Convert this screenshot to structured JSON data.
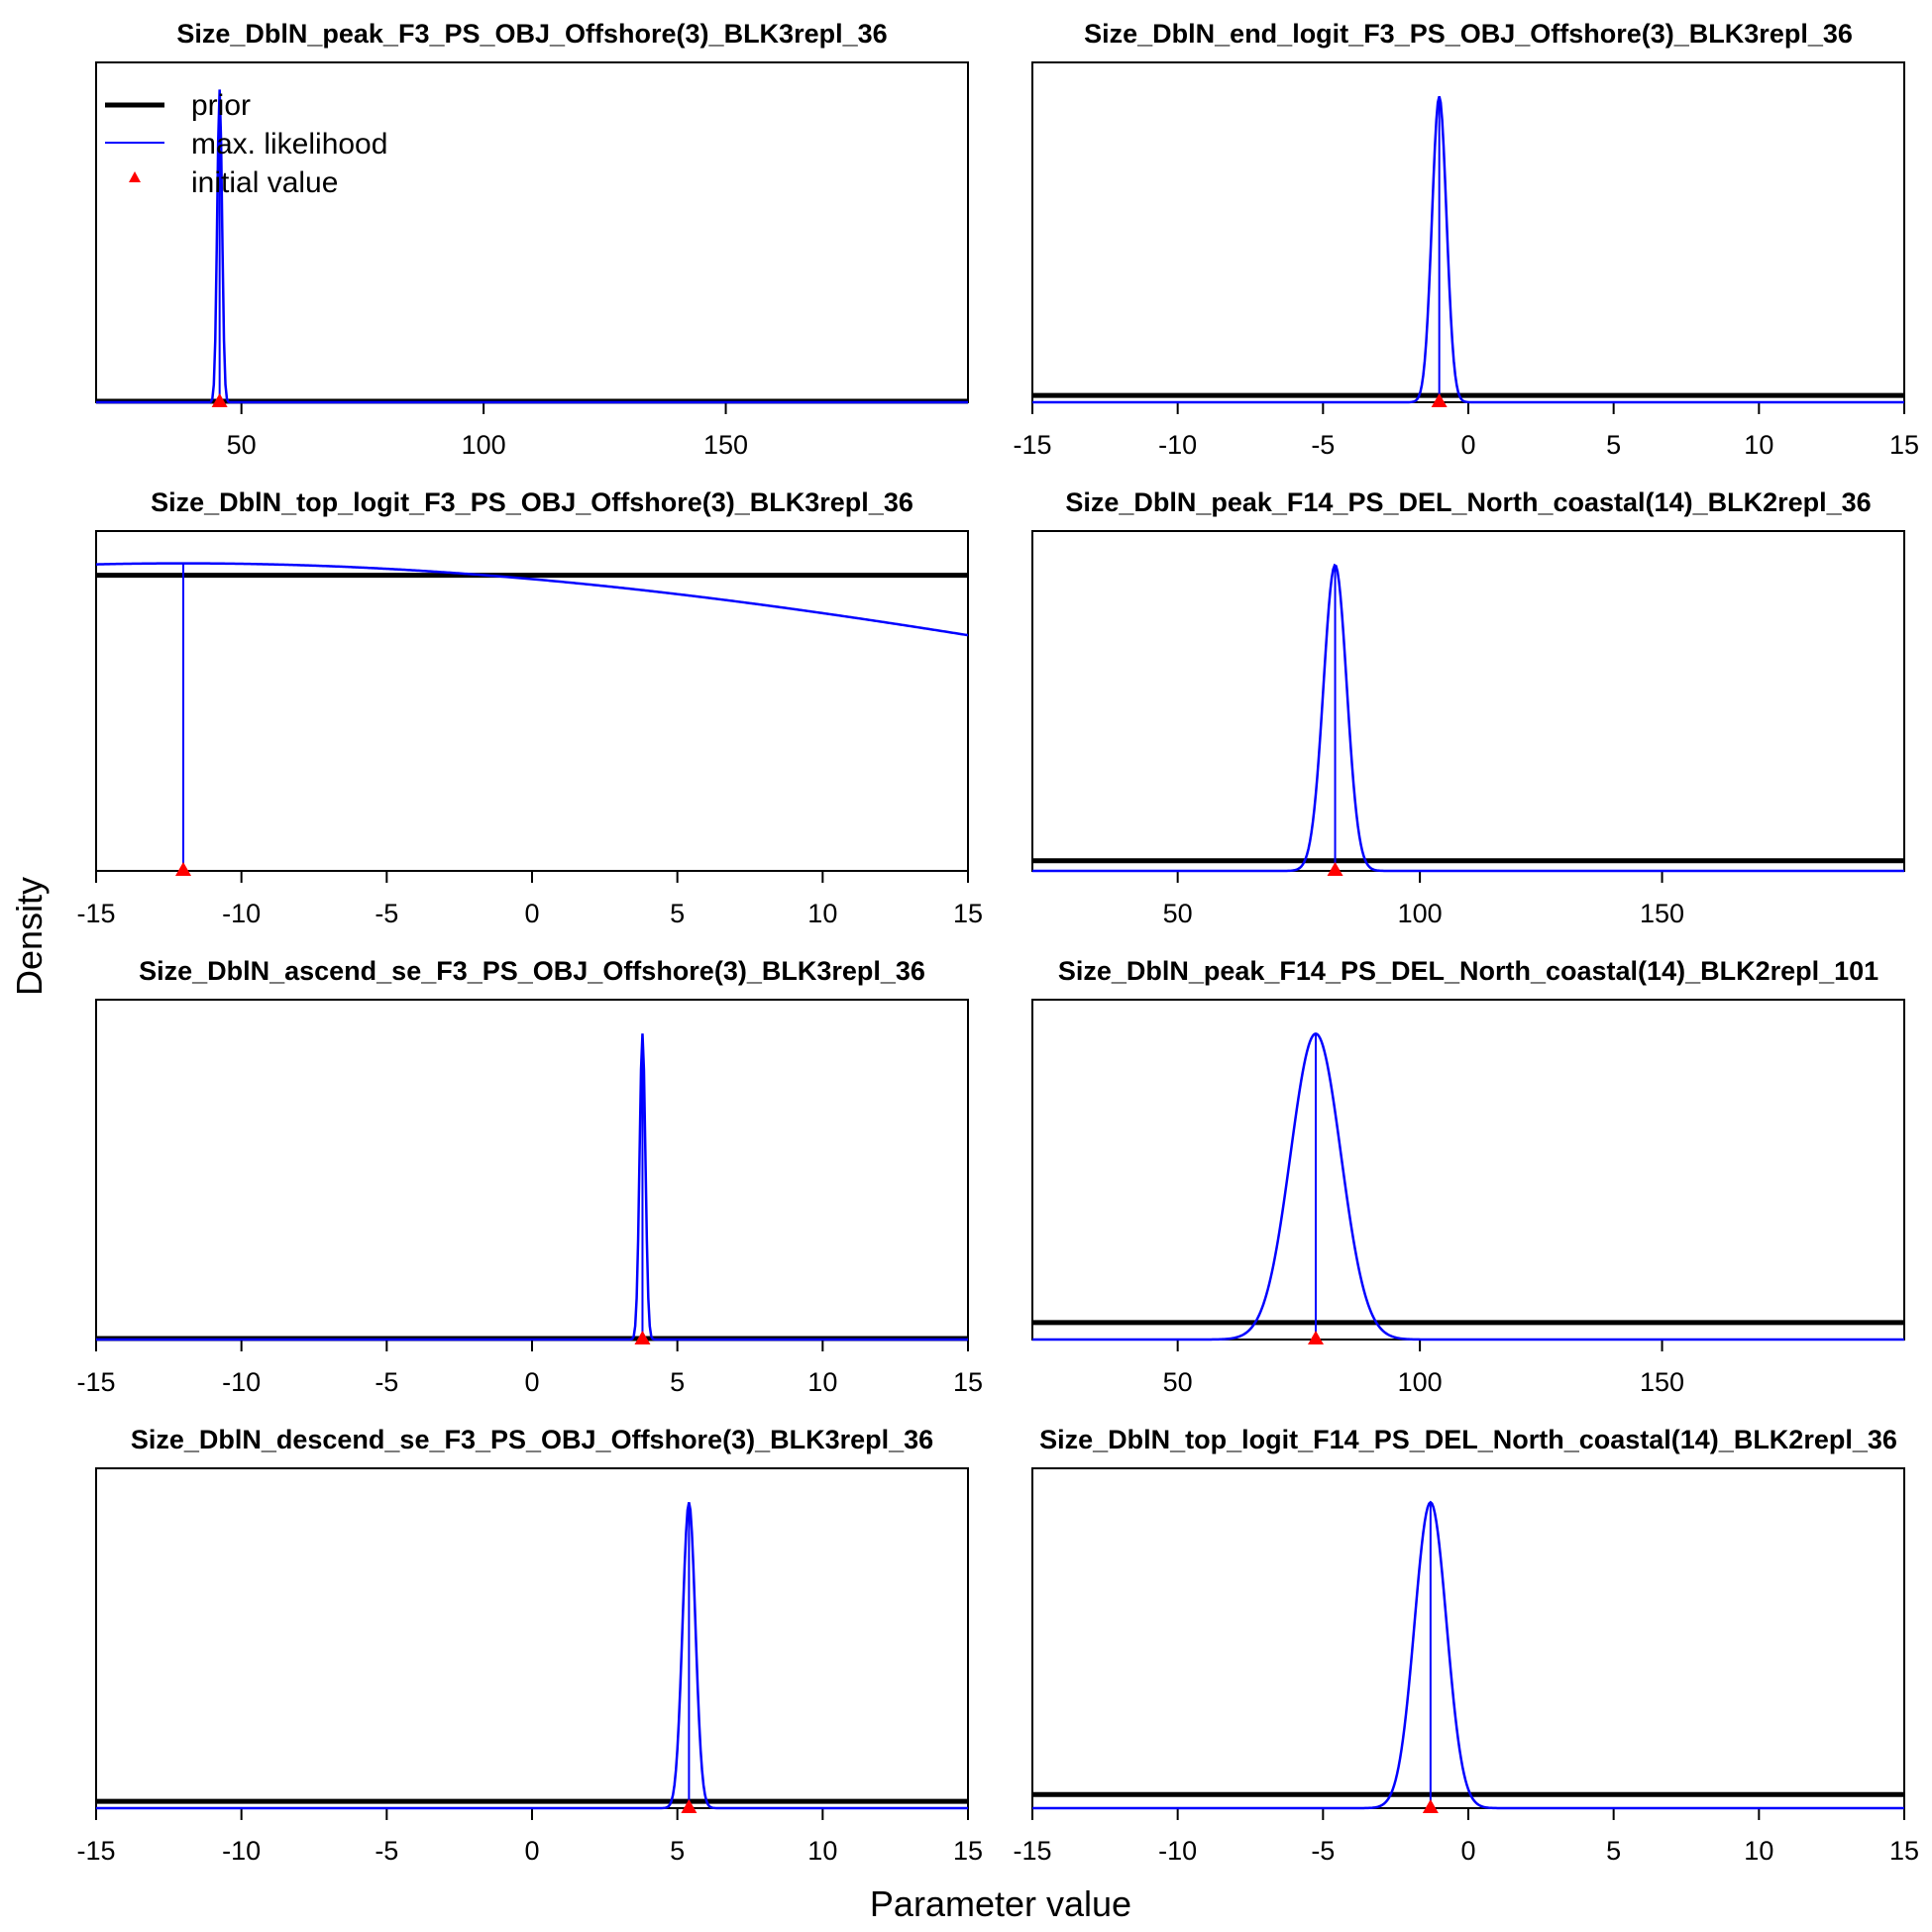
{
  "figure": {
    "ylabel": "Density",
    "xlabel": "Parameter value",
    "legend": {
      "placement": "top-left of first panel",
      "prior_label": "prior",
      "mle_label": "max. likelihood",
      "init_label": "initial value",
      "prior_color": "#000000",
      "mle_color": "#0000FF",
      "init_color": "#FF0000"
    }
  },
  "chart_data": [
    {
      "type": "line",
      "title": "Size_DblN_peak_F3_PS_OBJ_Offshore(3)_BLK3repl_36",
      "xlim": [
        20,
        200
      ],
      "xticks": [
        50,
        100,
        150
      ],
      "tick_labels": [
        "50",
        "100",
        "150"
      ],
      "prior_level": 0.0,
      "mle": {
        "mean": 45.5,
        "sd": 0.5,
        "peak": 0.92
      },
      "initial_value": 45.5
    },
    {
      "type": "line",
      "title": "Size_DblN_end_logit_F3_PS_OBJ_Offshore(3)_BLK3repl_36",
      "xlim": [
        -15,
        15
      ],
      "xticks": [
        -15,
        -10,
        -5,
        0,
        5,
        10,
        15
      ],
      "tick_labels": [
        "-15",
        "-10",
        "-5",
        "0",
        "5",
        "10",
        "15"
      ],
      "prior_level": 0.02,
      "mle": {
        "mean": -1.0,
        "sd": 0.25,
        "peak": 0.9
      },
      "initial_value": -1.0
    },
    {
      "type": "line",
      "title": "Size_DblN_top_logit_F3_PS_OBJ_Offshore(3)_BLK3repl_36",
      "xlim": [
        -15,
        15
      ],
      "xticks": [
        -15,
        -10,
        -5,
        0,
        5,
        10,
        15
      ],
      "tick_labels": [
        "-15",
        "-10",
        "-5",
        "0",
        "5",
        "10",
        "15"
      ],
      "prior_level": 0.87,
      "mle": {
        "mean": -12.0,
        "sd": 37.0,
        "peak": 0.905
      },
      "mle_vline": -12.0,
      "initial_value": -12.0
    },
    {
      "type": "line",
      "title": "Size_DblN_peak_F14_PS_DEL_North_coastal(14)_BLK2repl_36",
      "xlim": [
        20,
        200
      ],
      "xticks": [
        50,
        100,
        150
      ],
      "tick_labels": [
        "50",
        "100",
        "150"
      ],
      "prior_level": 0.03,
      "mle": {
        "mean": 82.5,
        "sd": 2.4,
        "peak": 0.9
      },
      "initial_value": 82.5
    },
    {
      "type": "line",
      "title": "Size_DblN_ascend_se_F3_PS_OBJ_Offshore(3)_BLK3repl_36",
      "xlim": [
        -15,
        15
      ],
      "xticks": [
        -15,
        -10,
        -5,
        0,
        5,
        10,
        15
      ],
      "tick_labels": [
        "-15",
        "-10",
        "-5",
        "0",
        "5",
        "10",
        "15"
      ],
      "prior_level": 0.0,
      "mle": {
        "mean": 3.8,
        "sd": 0.1,
        "peak": 0.9
      },
      "initial_value": 3.8
    },
    {
      "type": "line",
      "title": "Size_DblN_peak_F14_PS_DEL_North_coastal(14)_BLK2repl_101",
      "xlim": [
        20,
        200
      ],
      "xticks": [
        50,
        100,
        150
      ],
      "tick_labels": [
        "50",
        "100",
        "150"
      ],
      "prior_level": 0.05,
      "mle": {
        "mean": 78.5,
        "sd": 5.2,
        "peak": 0.9
      },
      "initial_value": 78.5
    },
    {
      "type": "line",
      "title": "Size_DblN_descend_se_F3_PS_OBJ_Offshore(3)_BLK3repl_36",
      "xlim": [
        -15,
        15
      ],
      "xticks": [
        -15,
        -10,
        -5,
        0,
        5,
        10,
        15
      ],
      "tick_labels": [
        "-15",
        "-10",
        "-5",
        "0",
        "5",
        "10",
        "15"
      ],
      "prior_level": 0.02,
      "mle": {
        "mean": 5.4,
        "sd": 0.22,
        "peak": 0.9
      },
      "initial_value": 5.4
    },
    {
      "type": "line",
      "title": "Size_DblN_top_logit_F14_PS_DEL_North_coastal(14)_BLK2repl_36",
      "xlim": [
        -15,
        15
      ],
      "xticks": [
        -15,
        -10,
        -5,
        0,
        5,
        10,
        15
      ],
      "tick_labels": [
        "-15",
        "-10",
        "-5",
        "0",
        "5",
        "10",
        "15"
      ],
      "prior_level": 0.04,
      "mle": {
        "mean": -1.3,
        "sd": 0.55,
        "peak": 0.9
      },
      "initial_value": -1.3
    }
  ]
}
